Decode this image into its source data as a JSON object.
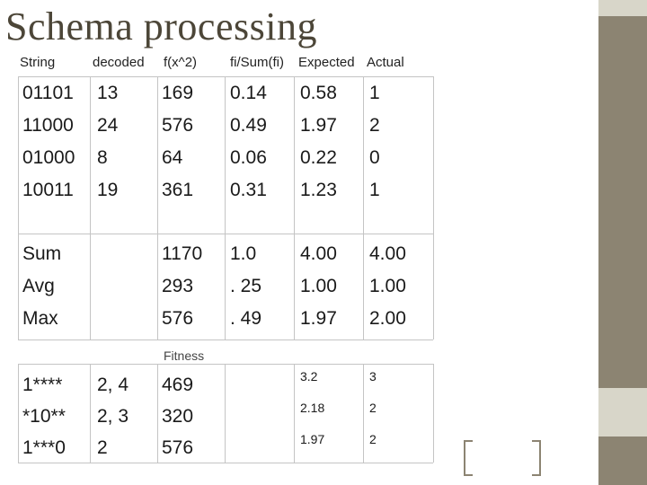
{
  "title": "Schema processing",
  "headers": {
    "string": "String",
    "decoded": "decoded",
    "fx2": "f(x^2)",
    "fisum": "fi/Sum(fi)",
    "expected": "Expected",
    "actual": "Actual"
  },
  "rows": [
    [
      "01101",
      "13",
      "169",
      "0.14",
      "0.58",
      "1"
    ],
    [
      "11000",
      "24",
      "576",
      "0.49",
      "1.97",
      "2"
    ],
    [
      "01000",
      "8",
      "64",
      "0.06",
      "0.22",
      "0"
    ],
    [
      "10011",
      "19",
      "361",
      "0.31",
      "1.23",
      "1"
    ]
  ],
  "summary": [
    [
      "Sum",
      "",
      "1170",
      "1.0",
      "4.00",
      "4.00"
    ],
    [
      "Avg",
      "",
      "293",
      ". 25",
      "1.00",
      "1.00"
    ],
    [
      "Max",
      "",
      "576",
      ". 49",
      "1.97",
      "2.00"
    ]
  ],
  "fitness_label": "Fitness",
  "schemas": [
    [
      "1****",
      "2, 4",
      "469",
      "",
      "3.2",
      "3"
    ],
    [
      "*10**",
      "2, 3",
      "320",
      "",
      "2.18",
      "2"
    ],
    [
      "1***0",
      "2",
      "576",
      "",
      "1.97",
      "2"
    ]
  ]
}
